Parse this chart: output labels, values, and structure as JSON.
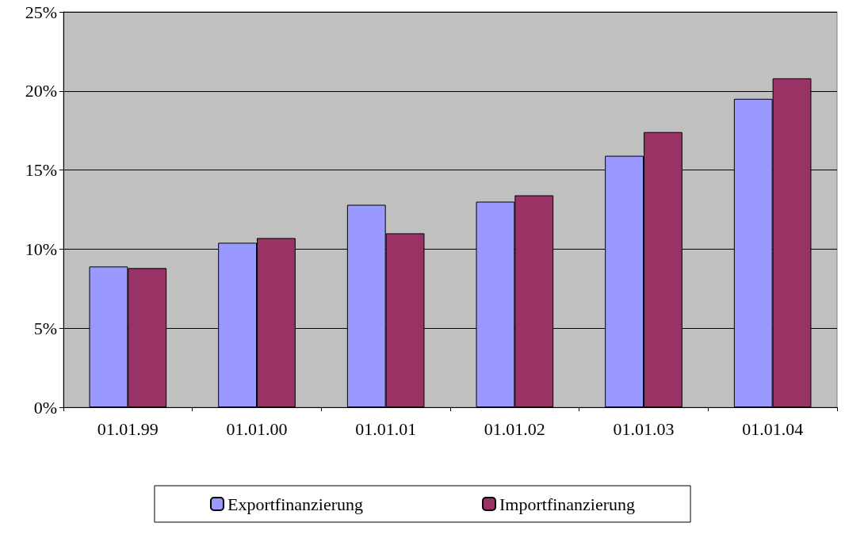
{
  "chart_data": {
    "type": "bar",
    "categories": [
      "01.01.99",
      "01.01.00",
      "01.01.01",
      "01.01.02",
      "01.01.03",
      "01.01.04"
    ],
    "series": [
      {
        "name": "Exportfinanzierung",
        "color": "#9999ff",
        "values": [
          8.9,
          10.4,
          12.8,
          13.0,
          15.9,
          19.5
        ]
      },
      {
        "name": "Importfinanzierung",
        "color": "#993366",
        "values": [
          8.8,
          10.7,
          11.0,
          13.4,
          17.4,
          20.8
        ]
      }
    ],
    "ylim": [
      0,
      25
    ],
    "yticks": [
      {
        "value": 0,
        "label": "0%"
      },
      {
        "value": 5,
        "label": "5%"
      },
      {
        "value": 10,
        "label": "10%"
      },
      {
        "value": 15,
        "label": "15%"
      },
      {
        "value": 20,
        "label": "20%"
      },
      {
        "value": 25,
        "label": "25%"
      }
    ],
    "grid": "y",
    "legend": "bottom"
  }
}
